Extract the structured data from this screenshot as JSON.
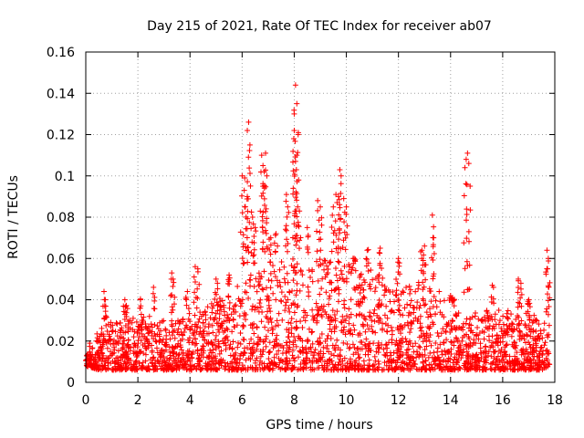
{
  "chart_data": {
    "type": "scatter",
    "title": "Day 215 of 2021, Rate Of TEC Index for receiver ab07",
    "xlabel": "GPS time / hours",
    "ylabel": "ROTI / TECUs",
    "xlim": [
      0,
      18
    ],
    "ylim": [
      0,
      0.16
    ],
    "x_ticks": [
      0,
      2,
      4,
      6,
      8,
      10,
      12,
      14,
      16,
      18
    ],
    "y_ticks": [
      0,
      0.02,
      0.04,
      0.06,
      0.08,
      0.1,
      0.12,
      0.14,
      0.16
    ],
    "x_tick_labels": [
      "0",
      "2",
      "4",
      "6",
      "8",
      "10",
      "12",
      "14",
      "16",
      "18"
    ],
    "y_tick_labels": [
      "0",
      "0.02",
      "0.04",
      "0.06",
      "0.08",
      "0.1",
      "0.12",
      "0.14",
      "0.16"
    ],
    "grid": true,
    "marker": "plus",
    "series_color": "#ff0000",
    "envelope": {
      "x": [
        0,
        0.5,
        1,
        1.5,
        2,
        2.5,
        3,
        3.5,
        4,
        4.5,
        5,
        5.5,
        6,
        6.5,
        7,
        7.5,
        8,
        8.5,
        9,
        9.5,
        10,
        10.5,
        11,
        11.5,
        12,
        12.5,
        13,
        13.5,
        14,
        14.5,
        15,
        15.5,
        16,
        16.5,
        17,
        17.5,
        17.8
      ],
      "upper": [
        0.018,
        0.025,
        0.03,
        0.03,
        0.033,
        0.032,
        0.03,
        0.03,
        0.034,
        0.035,
        0.04,
        0.045,
        0.05,
        0.055,
        0.058,
        0.06,
        0.06,
        0.058,
        0.06,
        0.058,
        0.06,
        0.055,
        0.055,
        0.05,
        0.05,
        0.048,
        0.05,
        0.045,
        0.04,
        0.03,
        0.035,
        0.035,
        0.035,
        0.035,
        0.035,
        0.03,
        0.03
      ],
      "lower": [
        0.008,
        0.006,
        0.006,
        0.006,
        0.006,
        0.006,
        0.006,
        0.006,
        0.006,
        0.006,
        0.006,
        0.006,
        0.006,
        0.006,
        0.006,
        0.006,
        0.006,
        0.006,
        0.006,
        0.006,
        0.006,
        0.006,
        0.006,
        0.006,
        0.006,
        0.006,
        0.006,
        0.006,
        0.006,
        0.006,
        0.006,
        0.006,
        0.006,
        0.006,
        0.006,
        0.006,
        0.008
      ]
    },
    "spikes": [
      {
        "x": 0.7,
        "y": 0.044
      },
      {
        "x": 0.75,
        "y": 0.04
      },
      {
        "x": 1.5,
        "y": 0.04
      },
      {
        "x": 1.55,
        "y": 0.037
      },
      {
        "x": 2.1,
        "y": 0.04
      },
      {
        "x": 2.6,
        "y": 0.046
      },
      {
        "x": 3.3,
        "y": 0.053
      },
      {
        "x": 3.35,
        "y": 0.05
      },
      {
        "x": 3.9,
        "y": 0.044
      },
      {
        "x": 4.2,
        "y": 0.056
      },
      {
        "x": 4.3,
        "y": 0.055
      },
      {
        "x": 5.0,
        "y": 0.05
      },
      {
        "x": 5.5,
        "y": 0.052
      },
      {
        "x": 6.0,
        "y": 0.1
      },
      {
        "x": 6.1,
        "y": 0.099
      },
      {
        "x": 6.2,
        "y": 0.122
      },
      {
        "x": 6.25,
        "y": 0.126
      },
      {
        "x": 6.3,
        "y": 0.115
      },
      {
        "x": 6.2,
        "y": 0.09
      },
      {
        "x": 6.1,
        "y": 0.085
      },
      {
        "x": 6.4,
        "y": 0.08
      },
      {
        "x": 6.5,
        "y": 0.075
      },
      {
        "x": 6.75,
        "y": 0.11
      },
      {
        "x": 6.8,
        "y": 0.105
      },
      {
        "x": 6.85,
        "y": 0.102
      },
      {
        "x": 6.9,
        "y": 0.111
      },
      {
        "x": 6.95,
        "y": 0.1
      },
      {
        "x": 6.8,
        "y": 0.095
      },
      {
        "x": 7.1,
        "y": 0.07
      },
      {
        "x": 7.3,
        "y": 0.072
      },
      {
        "x": 7.7,
        "y": 0.091
      },
      {
        "x": 7.75,
        "y": 0.085
      },
      {
        "x": 8.0,
        "y": 0.13
      },
      {
        "x": 8.05,
        "y": 0.144
      },
      {
        "x": 8.1,
        "y": 0.135
      },
      {
        "x": 8.0,
        "y": 0.122
      },
      {
        "x": 8.15,
        "y": 0.12
      },
      {
        "x": 8.1,
        "y": 0.11
      },
      {
        "x": 8.05,
        "y": 0.107
      },
      {
        "x": 8.2,
        "y": 0.083
      },
      {
        "x": 8.5,
        "y": 0.075
      },
      {
        "x": 8.9,
        "y": 0.088
      },
      {
        "x": 9.0,
        "y": 0.085
      },
      {
        "x": 9.5,
        "y": 0.085
      },
      {
        "x": 9.6,
        "y": 0.091
      },
      {
        "x": 9.7,
        "y": 0.09
      },
      {
        "x": 9.75,
        "y": 0.103
      },
      {
        "x": 9.8,
        "y": 0.1
      },
      {
        "x": 9.9,
        "y": 0.089
      },
      {
        "x": 10.0,
        "y": 0.085
      },
      {
        "x": 10.3,
        "y": 0.06
      },
      {
        "x": 10.8,
        "y": 0.064
      },
      {
        "x": 11.3,
        "y": 0.065
      },
      {
        "x": 12.0,
        "y": 0.06
      },
      {
        "x": 12.9,
        "y": 0.064
      },
      {
        "x": 13.0,
        "y": 0.066
      },
      {
        "x": 13.3,
        "y": 0.081
      },
      {
        "x": 13.35,
        "y": 0.07
      },
      {
        "x": 14.0,
        "y": 0.042
      },
      {
        "x": 14.1,
        "y": 0.04
      },
      {
        "x": 14.55,
        "y": 0.104
      },
      {
        "x": 14.6,
        "y": 0.108
      },
      {
        "x": 14.65,
        "y": 0.111
      },
      {
        "x": 14.7,
        "y": 0.106
      },
      {
        "x": 15.6,
        "y": 0.047
      },
      {
        "x": 16.6,
        "y": 0.05
      },
      {
        "x": 16.7,
        "y": 0.048
      },
      {
        "x": 17.0,
        "y": 0.04
      },
      {
        "x": 17.7,
        "y": 0.064
      },
      {
        "x": 17.75,
        "y": 0.06
      },
      {
        "x": 17.72,
        "y": 0.055
      }
    ]
  }
}
